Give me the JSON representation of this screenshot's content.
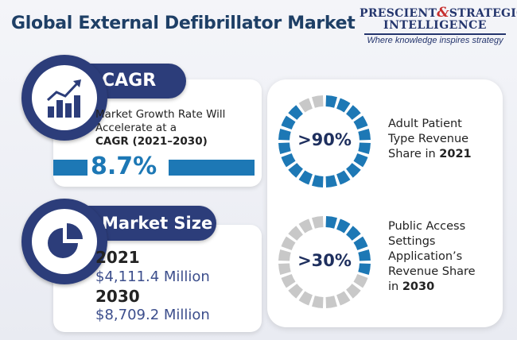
{
  "title": "Global External Defibrillator Market",
  "logo": {
    "line1_a": "PRESCIENT",
    "line1_amp": "&",
    "line1_b": "STRATEGIC",
    "line2": "INTELLIGENCE",
    "tagline": "Where knowledge inspires strategy"
  },
  "cagr": {
    "heading": "CAGR",
    "desc_line1": "Market Growth Rate Will",
    "desc_line2": "Accelerate at a",
    "desc_bold": "CAGR (2021–2030)",
    "value": "8.7%",
    "icon": "bar-chart-growth-icon"
  },
  "market_size": {
    "heading": "Market Size",
    "icon": "pie-chart-icon",
    "entries": [
      {
        "year": "2021",
        "amount": "$4,111.4 Million"
      },
      {
        "year": "2030",
        "amount": "$8,709.2 Million"
      }
    ]
  },
  "shares": [
    {
      "value_label": ">90%",
      "fraction": 0.9,
      "color": "#1d78b5",
      "text_lines": [
        "Adult Patient",
        "Type Revenue"
      ],
      "text_last_prefix": "Share in ",
      "text_last_bold": "2021"
    },
    {
      "value_label": ">30%",
      "fraction": 0.3,
      "color": "#1d78b5",
      "text_lines": [
        "Public Access",
        "Settings",
        "Application’s",
        "Revenue Share"
      ],
      "text_last_prefix": "in ",
      "text_last_bold": "2030"
    }
  ],
  "colors": {
    "navy": "#2c3d7a",
    "blue": "#1d78b5",
    "inactive_segment": "#c8c8c8",
    "title": "#1e3f66"
  }
}
